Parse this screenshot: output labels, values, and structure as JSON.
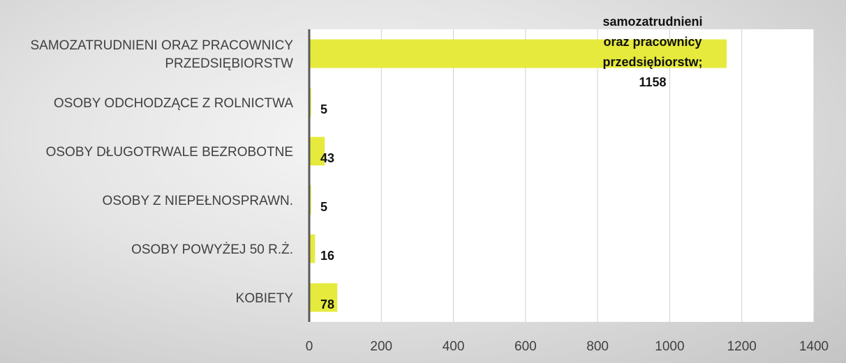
{
  "chart_data": {
    "type": "bar",
    "orientation": "horizontal",
    "title": "",
    "categories": [
      "SAMOZATRUDNIENI ORAZ PRACOWNICY PRZEDSIĘBIORSTW",
      "OSOBY ODCHODZĄCE Z ROLNICTWA",
      "OSOBY DŁUGOTRWALE BEZROBOTNE",
      "OSOBY Z NIEPEŁNOSPRAWN.",
      "OSOBY POWYŻEJ 50 R.Ż.",
      "KOBIETY"
    ],
    "category_label_lines": [
      [
        "SAMOZATRUDNIENI ORAZ PRACOWNICY",
        "PRZEDSIĘBIORSTW"
      ],
      [
        "OSOBY ODCHODZĄCE Z ROLNICTWA"
      ],
      [
        "OSOBY DŁUGOTRWALE BEZROBOTNE"
      ],
      [
        "OSOBY Z NIEPEŁNOSPRAWN."
      ],
      [
        "OSOBY POWYŻEJ 50 R.Ż."
      ],
      [
        "KOBIETY"
      ]
    ],
    "values": [
      1158,
      5,
      43,
      5,
      16,
      78
    ],
    "data_labels": [
      [
        "samozatrudnieni",
        "oraz pracownicy",
        "przedsiębiorstw;",
        "1158"
      ],
      [
        "5"
      ],
      [
        "43"
      ],
      [
        "5"
      ],
      [
        "16"
      ],
      [
        "78"
      ]
    ],
    "xlim": [
      0,
      1400
    ],
    "xticks": [
      0,
      200,
      400,
      600,
      800,
      1000,
      1200,
      1400
    ],
    "grid": true,
    "legend": "none",
    "colors": {
      "bar": "#e6ea3c",
      "grid": "#cfcfcf",
      "axis": "#595959",
      "plot_bg": "#ffffff"
    }
  }
}
